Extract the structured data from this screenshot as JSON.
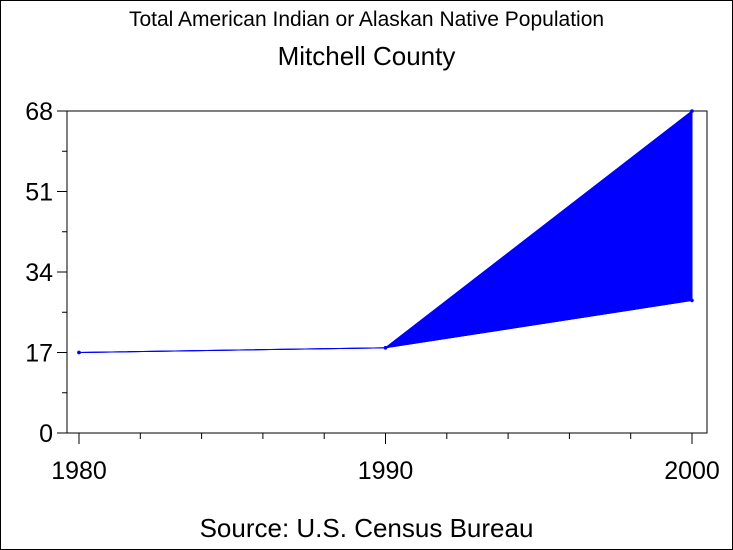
{
  "chart_data": {
    "type": "area",
    "title": "Total American Indian or Alaskan Native Population",
    "subtitle": "Mitchell County",
    "source": "Source: U.S. Census Bureau",
    "x": [
      1980,
      1990,
      2000
    ],
    "series": [
      {
        "values": [
          17,
          18,
          28
        ]
      },
      {
        "values": [
          17,
          18,
          68
        ]
      }
    ],
    "xlim": [
      1980,
      2000
    ],
    "ylim": [
      0,
      68
    ],
    "x_ticks": [
      "1980",
      "1990",
      "2000"
    ],
    "y_ticks": [
      "0",
      "17",
      "34",
      "51",
      "68"
    ],
    "x_tick_values": [
      1980,
      1990,
      2000
    ],
    "y_tick_values": [
      0,
      17,
      34,
      51,
      68
    ],
    "grid": false,
    "colors": {
      "fill": "#0000ff",
      "line": "#0000ff",
      "axis": "#000000"
    }
  }
}
